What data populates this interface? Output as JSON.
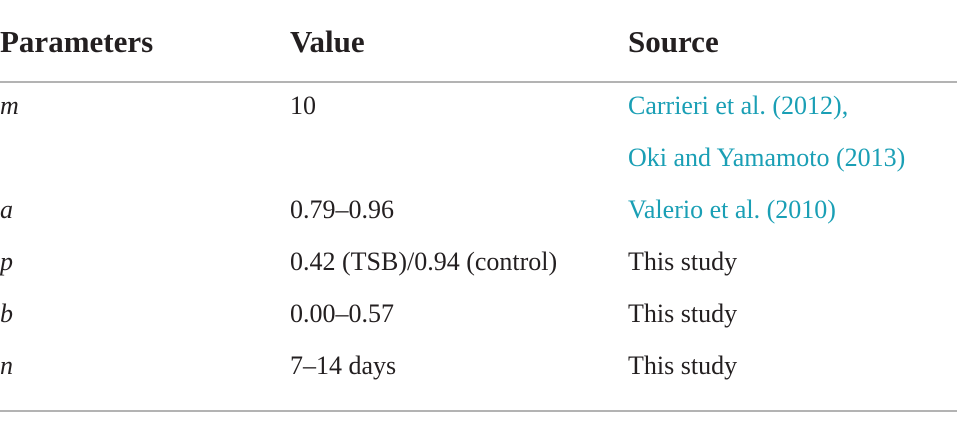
{
  "table": {
    "header": [
      "Parameters",
      "Value",
      "Source"
    ],
    "rows": [
      {
        "parameter": "m",
        "value": "10",
        "source": [
          "Carrieri et al. (2012),",
          "Oki and Yamamoto (2013)"
        ],
        "source_is_link": true
      },
      {
        "parameter": "a",
        "value": "0.79–0.96",
        "source": [
          "Valerio et al. (2010)"
        ],
        "source_is_link": true
      },
      {
        "parameter": "p",
        "value": "0.42 (TSB)/0.94 (control)",
        "source": [
          "This study"
        ],
        "source_is_link": false
      },
      {
        "parameter": "b",
        "value": "0.00–0.57",
        "source": [
          "This study"
        ],
        "source_is_link": false
      },
      {
        "parameter": "n",
        "value": "7–14 days",
        "source": [
          "This study"
        ],
        "source_is_link": false
      }
    ]
  }
}
